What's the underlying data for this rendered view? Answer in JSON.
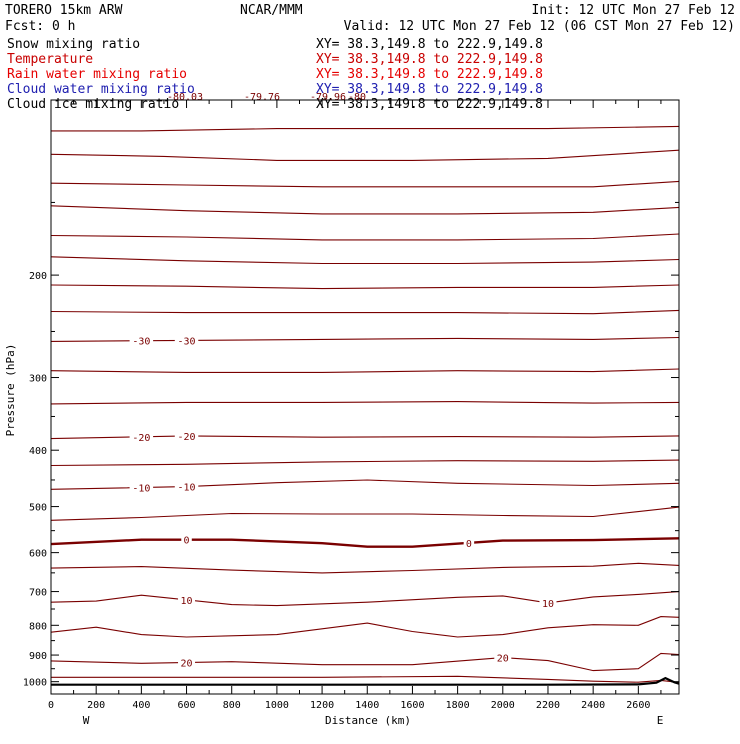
{
  "header": {
    "model": "TORERO  15km ARW",
    "center": "NCAR/MMM",
    "init": "Init: 12 UTC Mon 27 Feb 12",
    "fcst": "Fcst:    0 h",
    "valid": "Valid: 12 UTC Mon 27 Feb 12 (06 CST Mon 27 Feb 12)"
  },
  "fields": [
    {
      "name": "Snow mixing ratio",
      "xy": "XY=  38.3,149.8 to 222.9,149.8",
      "color": "#000000"
    },
    {
      "name": "Temperature",
      "xy": "XY=  38.3,149.8 to 222.9,149.8",
      "color": "#c80000"
    },
    {
      "name": "Rain water mixing ratio",
      "xy": "XY=  38.3,149.8 to 222.9,149.8",
      "color": "#e60000"
    },
    {
      "name": "Cloud water mixing ratio",
      "xy": "XY=  38.3,149.8 to 222.9,149.8",
      "color": "#2020b0"
    },
    {
      "name": "Cloud ice mixing ratio",
      "xy": "XY=  38.3,149.8 to 222.9,149.8",
      "color": "#000000"
    }
  ],
  "colors": {
    "isotherm": "#7a0000",
    "zero_isotherm": "#7a0000",
    "label": "#7a0000",
    "terrain": "#000000"
  },
  "chart_data": {
    "type": "line",
    "xlabel": "Distance (km)",
    "ylabel": "Pressure (hPa)",
    "xlim": [
      0,
      2780
    ],
    "ylim": [
      1050,
      100
    ],
    "y_scale": "log",
    "x_ticks": [
      0,
      200,
      400,
      600,
      800,
      1000,
      1200,
      1400,
      1600,
      1800,
      2000,
      2200,
      2400,
      2600
    ],
    "y_ticks": [
      200,
      300,
      400,
      500,
      600,
      700,
      800,
      900,
      1000
    ],
    "x_end_labels": {
      "left": "W",
      "right": "E"
    },
    "top_labels": [
      "-80.03",
      "-79.76",
      "-79.96",
      "-80"
    ],
    "isotherms": [
      {
        "pts": [
          [
            0,
            113
          ],
          [
            400,
            113
          ],
          [
            1000,
            112
          ],
          [
            1600,
            112
          ],
          [
            2200,
            112
          ],
          [
            2780,
            111
          ]
        ]
      },
      {
        "pts": [
          [
            0,
            124
          ],
          [
            500,
            125
          ],
          [
            1000,
            127
          ],
          [
            1600,
            127
          ],
          [
            2200,
            126
          ],
          [
            2780,
            122
          ]
        ]
      },
      {
        "pts": [
          [
            0,
            139
          ],
          [
            600,
            140
          ],
          [
            1200,
            141
          ],
          [
            1800,
            141
          ],
          [
            2400,
            141
          ],
          [
            2780,
            138
          ]
        ]
      },
      {
        "pts": [
          [
            0,
            152
          ],
          [
            600,
            155
          ],
          [
            1200,
            157
          ],
          [
            1800,
            157
          ],
          [
            2400,
            156
          ],
          [
            2780,
            153
          ]
        ]
      },
      {
        "pts": [
          [
            0,
            171
          ],
          [
            600,
            172
          ],
          [
            1200,
            174
          ],
          [
            1800,
            174
          ],
          [
            2400,
            173
          ],
          [
            2780,
            170
          ]
        ]
      },
      {
        "pts": [
          [
            0,
            186
          ],
          [
            600,
            189
          ],
          [
            1200,
            191
          ],
          [
            1800,
            191
          ],
          [
            2400,
            190
          ],
          [
            2780,
            188
          ]
        ]
      },
      {
        "pts": [
          [
            0,
            208
          ],
          [
            600,
            209
          ],
          [
            1200,
            211
          ],
          [
            1800,
            210
          ],
          [
            2400,
            210
          ],
          [
            2780,
            208
          ]
        ]
      },
      {
        "pts": [
          [
            0,
            231
          ],
          [
            600,
            232
          ],
          [
            1200,
            232
          ],
          [
            1800,
            232
          ],
          [
            2400,
            233
          ],
          [
            2780,
            230
          ]
        ]
      },
      {
        "label": "-30",
        "label_at": [
          400,
          600
        ],
        "pts": [
          [
            0,
            260
          ],
          [
            600,
            259
          ],
          [
            1200,
            258
          ],
          [
            1800,
            257
          ],
          [
            2400,
            258
          ],
          [
            2780,
            256
          ]
        ]
      },
      {
        "pts": [
          [
            0,
            292
          ],
          [
            600,
            294
          ],
          [
            1200,
            294
          ],
          [
            1800,
            292
          ],
          [
            2400,
            293
          ],
          [
            2780,
            290
          ]
        ]
      },
      {
        "pts": [
          [
            0,
            333
          ],
          [
            600,
            331
          ],
          [
            1200,
            331
          ],
          [
            1800,
            330
          ],
          [
            2400,
            332
          ],
          [
            2780,
            331
          ]
        ]
      },
      {
        "label": "-20",
        "label_at": [
          400,
          600
        ],
        "pts": [
          [
            0,
            382
          ],
          [
            600,
            378
          ],
          [
            1200,
            380
          ],
          [
            1800,
            379
          ],
          [
            2400,
            380
          ],
          [
            2780,
            378
          ]
        ]
      },
      {
        "pts": [
          [
            0,
            425
          ],
          [
            600,
            423
          ],
          [
            1200,
            419
          ],
          [
            1800,
            417
          ],
          [
            2400,
            418
          ],
          [
            2780,
            416
          ]
        ]
      },
      {
        "label": "-10",
        "label_at": [
          400,
          600
        ],
        "pts": [
          [
            0,
            467
          ],
          [
            600,
            462
          ],
          [
            1000,
            455
          ],
          [
            1400,
            450
          ],
          [
            1800,
            456
          ],
          [
            2400,
            460
          ],
          [
            2780,
            456
          ]
        ]
      },
      {
        "pts": [
          [
            0,
            528
          ],
          [
            400,
            522
          ],
          [
            800,
            514
          ],
          [
            1200,
            515
          ],
          [
            1600,
            515
          ],
          [
            2000,
            518
          ],
          [
            2400,
            520
          ],
          [
            2780,
            501
          ]
        ]
      },
      {
        "bold": true,
        "label": "0",
        "label_at": [
          600,
          1850
        ],
        "pts": [
          [
            0,
            580
          ],
          [
            400,
            570
          ],
          [
            800,
            570
          ],
          [
            1200,
            578
          ],
          [
            1400,
            586
          ],
          [
            1600,
            586
          ],
          [
            2000,
            572
          ],
          [
            2400,
            571
          ],
          [
            2780,
            567
          ]
        ]
      },
      {
        "pts": [
          [
            0,
            638
          ],
          [
            400,
            634
          ],
          [
            800,
            643
          ],
          [
            1200,
            650
          ],
          [
            1600,
            644
          ],
          [
            2000,
            636
          ],
          [
            2400,
            633
          ],
          [
            2600,
            626
          ],
          [
            2780,
            631
          ]
        ]
      },
      {
        "label": "10",
        "label_at": [
          600,
          2200
        ],
        "pts": [
          [
            0,
            730
          ],
          [
            200,
            727
          ],
          [
            400,
            710
          ],
          [
            800,
            737
          ],
          [
            1000,
            740
          ],
          [
            1400,
            730
          ],
          [
            1800,
            716
          ],
          [
            2000,
            712
          ],
          [
            2200,
            732
          ],
          [
            2400,
            715
          ],
          [
            2600,
            708
          ],
          [
            2780,
            700
          ]
        ]
      },
      {
        "pts": [
          [
            0,
            822
          ],
          [
            200,
            806
          ],
          [
            400,
            830
          ],
          [
            600,
            838
          ],
          [
            1000,
            830
          ],
          [
            1400,
            793
          ],
          [
            1600,
            820
          ],
          [
            1800,
            838
          ],
          [
            2000,
            830
          ],
          [
            2200,
            808
          ],
          [
            2400,
            798
          ],
          [
            2600,
            800
          ],
          [
            2700,
            773
          ],
          [
            2780,
            775
          ]
        ]
      },
      {
        "label": "20",
        "label_at": [
          600,
          2000
        ],
        "pts": [
          [
            0,
            921
          ],
          [
            400,
            930
          ],
          [
            800,
            924
          ],
          [
            1200,
            935
          ],
          [
            1600,
            935
          ],
          [
            2000,
            909
          ],
          [
            2200,
            920
          ],
          [
            2400,
            957
          ],
          [
            2600,
            950
          ],
          [
            2700,
            894
          ],
          [
            2780,
            898
          ]
        ]
      },
      {
        "pts": [
          [
            0,
            983
          ],
          [
            600,
            983
          ],
          [
            1200,
            983
          ],
          [
            1800,
            979
          ],
          [
            2200,
            991
          ],
          [
            2400,
            998
          ],
          [
            2600,
            1002
          ],
          [
            2700,
            995
          ],
          [
            2780,
            1003
          ]
        ]
      }
    ],
    "terrain": [
      [
        0,
        1012
      ],
      [
        800,
        1012
      ],
      [
        1400,
        1012
      ],
      [
        1800,
        1012
      ],
      [
        2200,
        1012
      ],
      [
        2600,
        1011
      ],
      [
        2680,
        1004
      ],
      [
        2720,
        986
      ],
      [
        2760,
        1003
      ],
      [
        2780,
        1008
      ]
    ]
  }
}
